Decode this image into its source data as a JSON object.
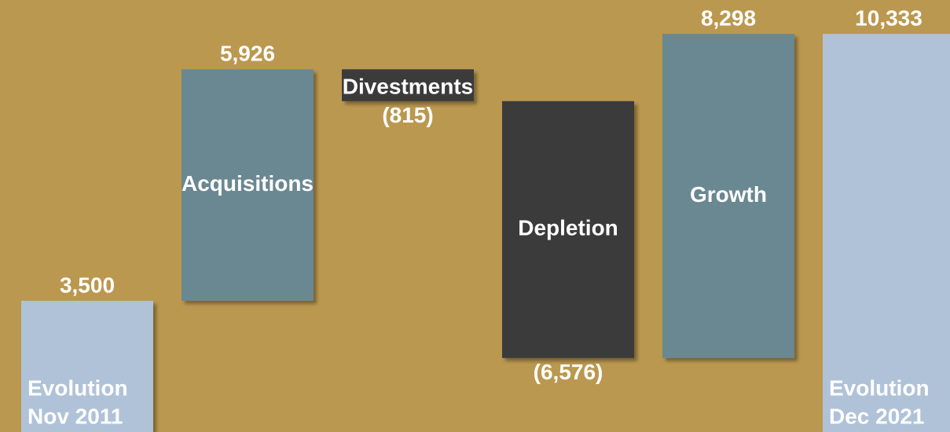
{
  "chart_data": {
    "type": "waterfall",
    "categories": [
      [
        "Evolution",
        "Nov 2011"
      ],
      "Acquisitions",
      "Divestments",
      "Depletion",
      "Growth",
      [
        "Evolution",
        "Dec 2021"
      ]
    ],
    "measure": [
      "total",
      "relative",
      "relative",
      "relative",
      "relative",
      "total"
    ],
    "values": [
      3500,
      5926,
      -815,
      -6576,
      8298,
      10333
    ],
    "value_labels": [
      "3,500",
      "5,926",
      "(815)",
      "(6,576)",
      "8,298",
      "10,333"
    ],
    "colors": {
      "total": "#afc2d8",
      "increase": "#6a8891",
      "decrease": "#3a3a3a"
    },
    "ylim": [
      0,
      11200
    ]
  }
}
